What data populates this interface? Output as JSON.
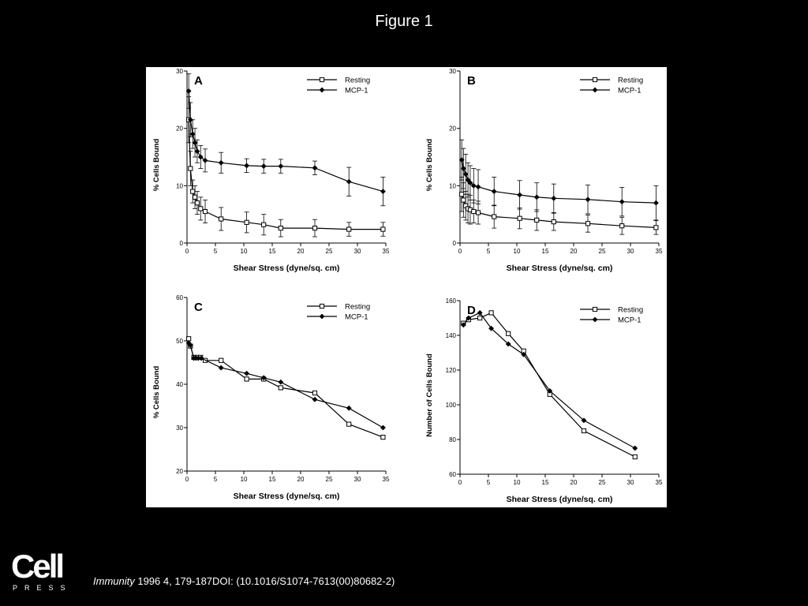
{
  "slide": {
    "title": "Figure 1",
    "logo_word": "Cell",
    "logo_sub": "PRESS",
    "citation_journal": "Immunity",
    "citation_rest": " 1996 4, 179-187DOI: (10.1016/S1074-7613(00)80682-2)"
  },
  "colors": {
    "background": "#000000",
    "panel": "#ffffff",
    "ink": "#000000"
  },
  "chart_data": [
    {
      "panel": "A",
      "type": "line",
      "xlabel": "Shear Stress (dyne/sq. cm)",
      "ylabel": "% Cells Bound",
      "xlim": [
        0,
        35
      ],
      "ylim": [
        0,
        30
      ],
      "xticks": [
        0,
        5,
        10,
        15,
        20,
        25,
        30,
        35
      ],
      "yticks": [
        0,
        10,
        20,
        30
      ],
      "legend_position": "top-right",
      "series": [
        {
          "name": "Resting",
          "marker": "open-square",
          "x": [
            0.3,
            0.6,
            1.0,
            1.4,
            1.8,
            2.4,
            3.2,
            6.0,
            10.5,
            13.5,
            16.5,
            22.5,
            28.5,
            34.5
          ],
          "y": [
            21.5,
            13.0,
            9.0,
            8.0,
            7.0,
            6.0,
            5.5,
            4.2,
            3.6,
            3.2,
            2.6,
            2.6,
            2.4,
            2.4
          ],
          "err": [
            4,
            3,
            2,
            2,
            2,
            2,
            2,
            2,
            1.8,
            1.8,
            1.5,
            1.5,
            1.2,
            1.2
          ]
        },
        {
          "name": "MCP-1",
          "marker": "filled-diamond",
          "x": [
            0.3,
            0.6,
            1.0,
            1.4,
            1.8,
            2.4,
            3.2,
            6.0,
            10.5,
            13.5,
            16.5,
            22.5,
            28.5,
            34.5
          ],
          "y": [
            26.5,
            21.5,
            19.0,
            17.5,
            16.0,
            15.0,
            14.4,
            14.0,
            13.5,
            13.4,
            13.4,
            13.1,
            10.7,
            9.0
          ],
          "err": [
            3,
            3,
            2.5,
            2.5,
            2,
            2,
            2,
            1.8,
            1.2,
            1.2,
            1.2,
            1.2,
            2.5,
            2.5
          ]
        }
      ]
    },
    {
      "panel": "B",
      "type": "line",
      "xlabel": "Shear Stress (dyne/sq. cm)",
      "ylabel": "% Cells Bound",
      "xlim": [
        0,
        35
      ],
      "ylim": [
        0,
        30
      ],
      "xticks": [
        0,
        5,
        10,
        15,
        20,
        25,
        30,
        35
      ],
      "yticks": [
        0,
        10,
        20,
        30
      ],
      "legend_position": "top-right",
      "series": [
        {
          "name": "Resting",
          "marker": "open-square",
          "x": [
            0.3,
            0.6,
            1.0,
            1.4,
            1.8,
            2.4,
            3.2,
            6.0,
            10.5,
            13.5,
            16.5,
            22.5,
            28.5,
            34.5
          ],
          "y": [
            8.5,
            7.5,
            6.5,
            6.0,
            5.8,
            5.5,
            5.3,
            4.6,
            4.3,
            4.0,
            3.7,
            3.4,
            3.0,
            2.7
          ],
          "err": [
            3,
            3,
            2.5,
            2.5,
            2.5,
            2,
            2,
            2,
            1.8,
            1.8,
            1.5,
            1.5,
            1.5,
            1.2
          ]
        },
        {
          "name": "MCP-1",
          "marker": "filled-diamond",
          "x": [
            0.3,
            0.6,
            1.0,
            1.4,
            1.8,
            2.4,
            3.2,
            6.0,
            10.5,
            13.5,
            16.5,
            22.5,
            28.5,
            34.5
          ],
          "y": [
            14.5,
            13.0,
            12.0,
            11.0,
            10.5,
            10.0,
            9.8,
            9.0,
            8.4,
            8.0,
            7.8,
            7.6,
            7.2,
            7.0
          ],
          "err": [
            3.5,
            3.5,
            3.5,
            3,
            3,
            3,
            3,
            2.5,
            2.5,
            2.5,
            2.5,
            2.5,
            2.5,
            3
          ]
        }
      ]
    },
    {
      "panel": "C",
      "type": "line",
      "xlabel": "Shear Stress (dyne/sq. cm)",
      "ylabel": "% Cells Bound",
      "xlim": [
        0,
        35
      ],
      "ylim": [
        20,
        60
      ],
      "xticks": [
        0,
        5,
        10,
        15,
        20,
        25,
        30,
        35
      ],
      "yticks": [
        20,
        30,
        40,
        50,
        60
      ],
      "legend_position": "top-right",
      "series": [
        {
          "name": "Resting",
          "marker": "open-square",
          "x": [
            0.3,
            0.6,
            1.2,
            1.8,
            2.4,
            3.2,
            6.0,
            10.5,
            13.5,
            16.5,
            22.5,
            28.5,
            34.5
          ],
          "y": [
            50.5,
            48.8,
            46.2,
            46.2,
            46.2,
            45.5,
            45.5,
            41.2,
            41.2,
            39.2,
            38.0,
            30.8,
            27.8
          ]
        },
        {
          "name": "MCP-1",
          "marker": "filled-diamond",
          "x": [
            0.3,
            0.6,
            1.2,
            1.6,
            2.0,
            2.5,
            6.0,
            10.5,
            13.5,
            16.5,
            22.5,
            28.5,
            34.5
          ],
          "y": [
            49.5,
            49.0,
            46.0,
            46.0,
            46.0,
            46.0,
            43.8,
            42.5,
            41.5,
            40.5,
            36.5,
            34.5,
            30.0
          ]
        }
      ]
    },
    {
      "panel": "D",
      "type": "line",
      "xlabel": "Shear Stress (dyne/sq. cm)",
      "ylabel": "Number of Cells Bound",
      "xlim": [
        0,
        35
      ],
      "ylim": [
        60,
        160
      ],
      "xticks": [
        0,
        5,
        10,
        15,
        20,
        25,
        30,
        35
      ],
      "yticks": [
        60,
        80,
        100,
        120,
        140,
        160
      ],
      "legend_position": "top-right",
      "series": [
        {
          "name": "Resting",
          "marker": "open-square",
          "x": [
            0.6,
            1.5,
            3.5,
            5.5,
            8.5,
            11.2,
            15.8,
            21.8,
            30.8
          ],
          "y": [
            147,
            149,
            150,
            153,
            141,
            131,
            106,
            85,
            70
          ]
        },
        {
          "name": "MCP-1",
          "marker": "filled-diamond",
          "x": [
            0.6,
            1.5,
            3.5,
            5.5,
            8.5,
            11.2,
            15.8,
            21.8,
            30.8
          ],
          "y": [
            146,
            150,
            153,
            144,
            135,
            129,
            108,
            91,
            75
          ]
        }
      ]
    }
  ]
}
